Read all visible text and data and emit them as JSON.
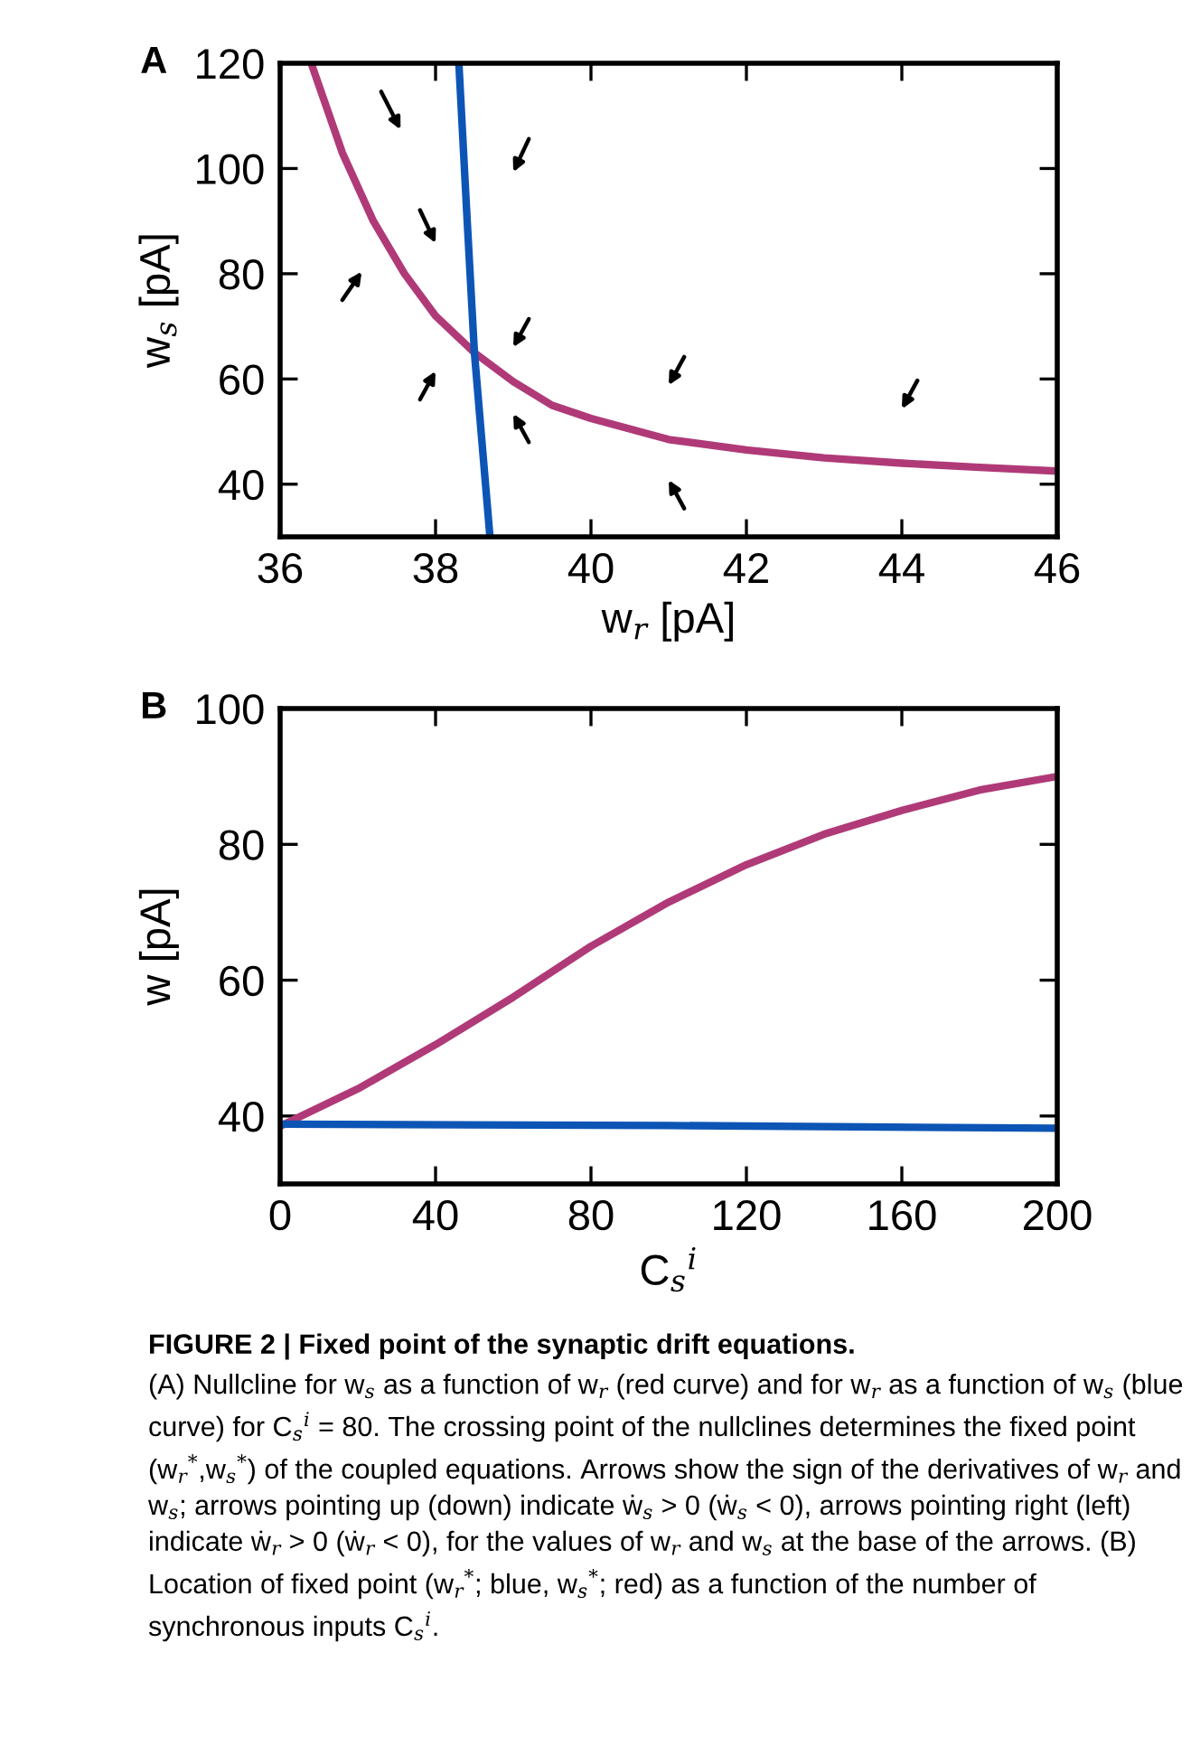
{
  "chart_data": [
    {
      "type": "line",
      "title": "A",
      "xlabel": "w$_{r}$ [pA]",
      "ylabel": "w$_{s}$ [pA]",
      "xlim": [
        36,
        46
      ],
      "xticks": [
        36,
        38,
        40,
        42,
        44,
        46
      ],
      "ylim": [
        30,
        120
      ],
      "yticks": [
        40,
        60,
        80,
        100,
        120
      ],
      "grid": false,
      "legend": false,
      "series": [
        {
          "color": "#b03a78",
          "x": [
            36.4,
            36.8,
            37.2,
            37.6,
            38.0,
            38.5,
            39.0,
            39.5,
            40.0,
            41.0,
            42.0,
            43.0,
            44.0,
            45.0,
            46.0
          ],
          "values": [
            120,
            103,
            90,
            80,
            72,
            65,
            59.5,
            55,
            52.5,
            48.5,
            46.5,
            45,
            44,
            43.2,
            42.5
          ]
        },
        {
          "color": "#0d55b5",
          "x": [
            38.3,
            38.4,
            38.5,
            38.7
          ],
          "values": [
            120,
            92,
            65,
            30
          ]
        }
      ]
    },
    {
      "type": "line",
      "title": "B",
      "xlabel": "C$_{s}$$^{i}$",
      "ylabel": "w [pA]",
      "xlim": [
        0,
        200
      ],
      "xticks": [
        0,
        40,
        80,
        120,
        160,
        200
      ],
      "ylim": [
        30,
        100
      ],
      "yticks": [
        40,
        60,
        80,
        100
      ],
      "grid": false,
      "legend": false,
      "series": [
        {
          "color": "#b03a78",
          "x": [
            0,
            20,
            40,
            60,
            80,
            100,
            120,
            140,
            160,
            180,
            200
          ],
          "values": [
            38.5,
            44,
            50.5,
            57.5,
            65,
            71.5,
            77,
            81.5,
            85,
            88,
            90
          ]
        },
        {
          "color": "#0d55b5",
          "x": [
            0,
            100,
            200
          ],
          "values": [
            38.8,
            38.6,
            38.2
          ]
        }
      ],
      "annotations": [
        "FIGURE 2 | Fixed point of the synaptic drift equations.",
        "(A) Nullcline for w$_{s}$ as a function of w$_{r}$ (red curve) and for w$_{r}$ as a function of w$_{s}$ (blue curve) for C$_{s}$$^{i}$ = 80. The crossing point of the nullclines determines the fixed point (w$_{r}$$^{*}$,w$_{s}$$^{*}$) of the coupled equations. Arrows show the sign of the derivatives of w$_{r}$ and w$_{s}$; arrows pointing up (down) indicate ẇ$_{s}$ > 0 (ẇ$_{s}$ < 0), arrows pointing right (left) indicate ẇ$_{r}$ > 0 (ẇ$_{r}$ < 0), for the values of w$_{r}$ and w$_{s}$ at the base of the arrows. (B) Location of fixed point (w$_{r}$$^{*}$; blue, w$_{s}$$^{*}$; red) as a function of the number of synchronous inputs C$_{s}$$^{i}$."
      ]
    }
  ]
}
